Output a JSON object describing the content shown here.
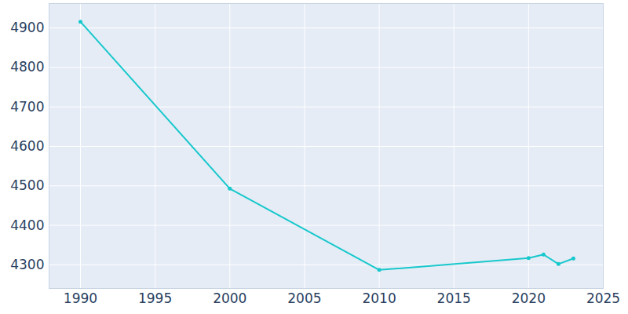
{
  "chart_data": {
    "type": "line",
    "x": [
      1990,
      2000,
      2010,
      2020,
      2021,
      2022,
      2023
    ],
    "values": [
      4916,
      4493,
      4287,
      4317,
      4326,
      4302,
      4316
    ],
    "color": "#17c8cc",
    "marker": "circle",
    "xlim": [
      1987.9,
      2025
    ],
    "ylim": [
      4240,
      4962
    ],
    "xticks": [
      1990,
      1995,
      2000,
      2005,
      2010,
      2015,
      2020,
      2025
    ],
    "yticks": [
      4300,
      4400,
      4500,
      4600,
      4700,
      4800,
      4900
    ],
    "grid": true
  }
}
